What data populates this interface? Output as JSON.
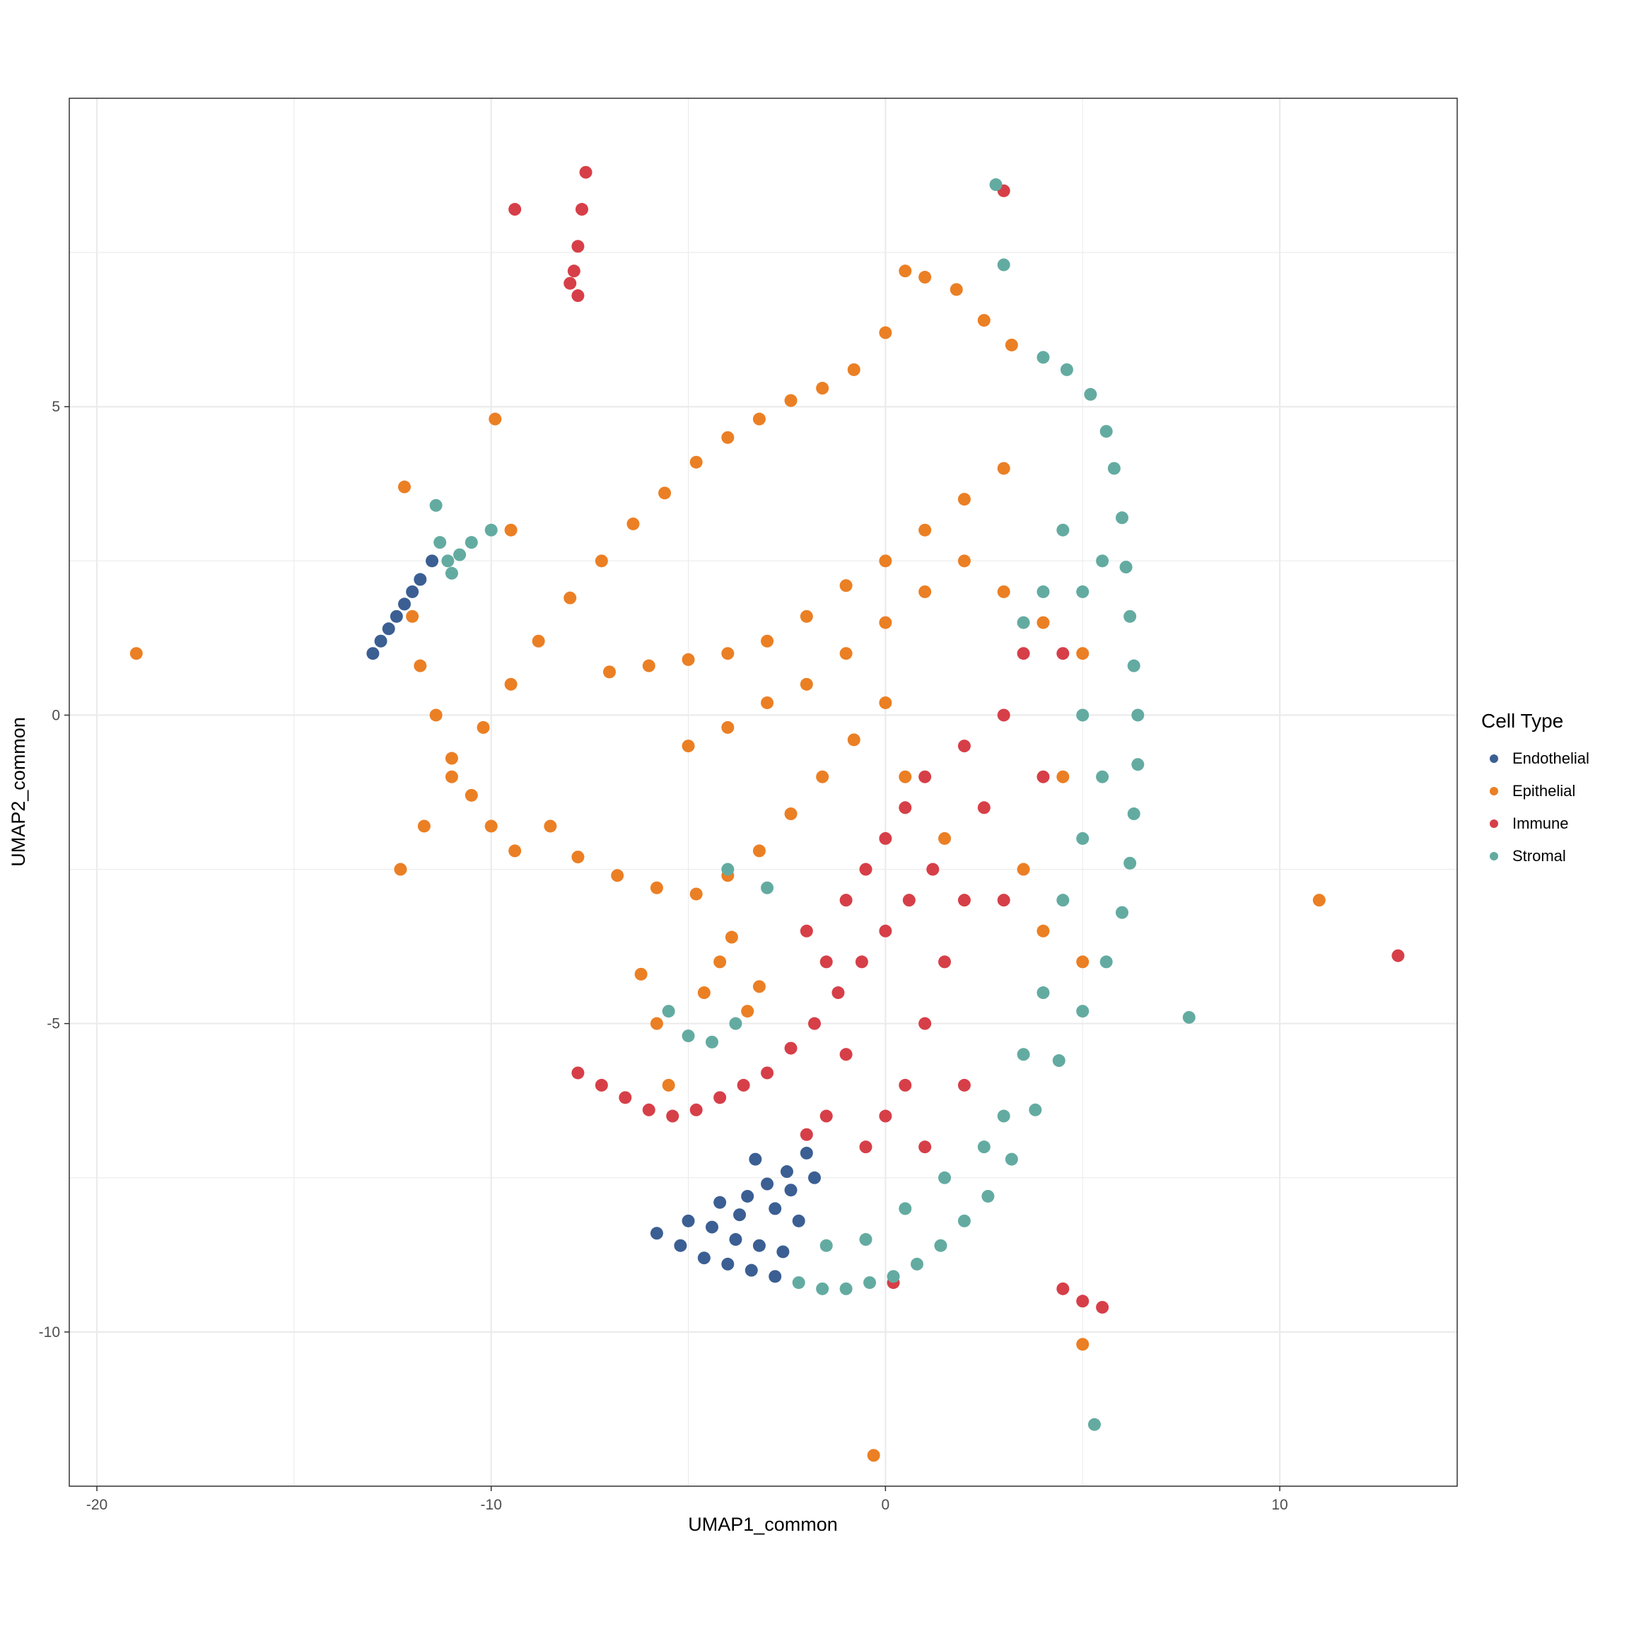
{
  "chart_data": {
    "type": "scatter",
    "title": "",
    "xlabel": "UMAP1_common",
    "ylabel": "UMAP2_common",
    "xlim": [
      -20.7,
      14.5
    ],
    "ylim": [
      -12.5,
      10
    ],
    "xticks": [
      -20,
      -10,
      0,
      10
    ],
    "xtick_labels": [
      "-20",
      "-10",
      "0",
      "10"
    ],
    "yticks": [
      -10,
      -5,
      0,
      5
    ],
    "ytick_labels": [
      "-10",
      "-5",
      "0",
      "5"
    ],
    "grid": true,
    "legend": {
      "title": "Cell Type",
      "position": "right",
      "entries": [
        "Endothelial",
        "Epithelial",
        "Immune",
        "Stromal"
      ]
    },
    "series": [
      {
        "name": "Endothelial",
        "color": "#3b5f93",
        "points": [
          [
            -13,
            1
          ],
          [
            -12.6,
            1.4
          ],
          [
            -12.2,
            1.8
          ],
          [
            -11.8,
            2.2
          ],
          [
            -11.5,
            2.5
          ],
          [
            -12.8,
            1.2
          ],
          [
            -12.4,
            1.6
          ],
          [
            -12,
            2
          ],
          [
            -5.8,
            -8.4
          ],
          [
            -5.2,
            -8.6
          ],
          [
            -4.6,
            -8.8
          ],
          [
            -4,
            -8.9
          ],
          [
            -3.4,
            -9
          ],
          [
            -2.8,
            -9.1
          ],
          [
            -5,
            -8.2
          ],
          [
            -4.4,
            -8.3
          ],
          [
            -3.8,
            -8.5
          ],
          [
            -3.2,
            -8.6
          ],
          [
            -2.6,
            -8.7
          ],
          [
            -3.5,
            -7.8
          ],
          [
            -3,
            -7.6
          ],
          [
            -2.5,
            -7.4
          ],
          [
            -2.8,
            -8
          ],
          [
            -2.2,
            -8.2
          ],
          [
            -4.2,
            -7.9
          ],
          [
            -3.7,
            -8.1
          ],
          [
            -2,
            -7.1
          ],
          [
            -2.4,
            -7.7
          ],
          [
            -1.8,
            -7.5
          ],
          [
            -3.3,
            -7.2
          ]
        ]
      },
      {
        "name": "Epithelial",
        "color": "#eb7f24",
        "points": [
          [
            -12.3,
            -2.5
          ],
          [
            -11.7,
            -1.8
          ],
          [
            -11,
            -1
          ],
          [
            -10.2,
            -0.2
          ],
          [
            -9.5,
            0.5
          ],
          [
            -8.8,
            1.2
          ],
          [
            -8,
            1.9
          ],
          [
            -7.2,
            2.5
          ],
          [
            -6.4,
            3.1
          ],
          [
            -5.6,
            3.6
          ],
          [
            -4.8,
            4.1
          ],
          [
            -4,
            4.5
          ],
          [
            -3.2,
            4.8
          ],
          [
            -2.4,
            5.1
          ],
          [
            -1.6,
            5.3
          ],
          [
            -0.8,
            5.6
          ],
          [
            0,
            6.2
          ],
          [
            0.5,
            7.2
          ],
          [
            1,
            7.1
          ],
          [
            1.8,
            6.9
          ],
          [
            2.5,
            6.4
          ],
          [
            3.2,
            6
          ],
          [
            -7,
            0.7
          ],
          [
            -6,
            0.8
          ],
          [
            -5,
            0.9
          ],
          [
            -4,
            1
          ],
          [
            -3,
            1.2
          ],
          [
            -2,
            1.6
          ],
          [
            -1,
            2.1
          ],
          [
            0,
            2.5
          ],
          [
            1,
            3
          ],
          [
            2,
            3.5
          ],
          [
            3,
            4
          ],
          [
            -5,
            -0.5
          ],
          [
            -4,
            -0.2
          ],
          [
            -3,
            0.2
          ],
          [
            -2,
            0.5
          ],
          [
            -1,
            1
          ],
          [
            0,
            1.5
          ],
          [
            1,
            2
          ],
          [
            2,
            2.5
          ],
          [
            -8.5,
            -1.8
          ],
          [
            -7.8,
            -2.3
          ],
          [
            -6.8,
            -2.6
          ],
          [
            -5.8,
            -2.8
          ],
          [
            -4.8,
            -2.9
          ],
          [
            -4,
            -2.6
          ],
          [
            -3.2,
            -2.2
          ],
          [
            -2.4,
            -1.6
          ],
          [
            -1.6,
            -1
          ],
          [
            -0.8,
            -0.4
          ],
          [
            0,
            0.2
          ],
          [
            -12,
            1.6
          ],
          [
            -11.8,
            0.8
          ],
          [
            -11.4,
            0
          ],
          [
            -11,
            -0.7
          ],
          [
            -10.5,
            -1.3
          ],
          [
            -10,
            -1.8
          ],
          [
            -9.4,
            -2.2
          ],
          [
            -4.6,
            -4.5
          ],
          [
            -4.2,
            -4
          ],
          [
            -3.9,
            -3.6
          ],
          [
            -3.5,
            -4.8
          ],
          [
            -3.2,
            -4.4
          ],
          [
            -5.5,
            -6
          ],
          [
            -5.8,
            -5
          ],
          [
            -6.2,
            -4.2
          ],
          [
            3,
            2
          ],
          [
            4,
            1.5
          ],
          [
            5,
            1
          ],
          [
            4.5,
            -1
          ],
          [
            3.5,
            -2.5
          ],
          [
            4,
            -3.5
          ],
          [
            5,
            -4
          ],
          [
            1.5,
            -2
          ],
          [
            0.5,
            -1
          ],
          [
            -12.2,
            3.7
          ],
          [
            -9.9,
            4.8
          ],
          [
            -9.5,
            3
          ],
          [
            -19,
            1
          ],
          [
            -0.3,
            -12
          ],
          [
            5,
            -10.2
          ],
          [
            11,
            -3
          ]
        ]
      },
      {
        "name": "Immune",
        "color": "#d63f48",
        "points": [
          [
            -7.6,
            8.8
          ],
          [
            -7.7,
            8.2
          ],
          [
            -7.8,
            7.6
          ],
          [
            -7.9,
            7.2
          ],
          [
            -8,
            7
          ],
          [
            -7.8,
            6.8
          ],
          [
            -9.4,
            8.2
          ],
          [
            -7.8,
            -5.8
          ],
          [
            -7.2,
            -6
          ],
          [
            -6.6,
            -6.2
          ],
          [
            -6,
            -6.4
          ],
          [
            -5.4,
            -6.5
          ],
          [
            -4.8,
            -6.4
          ],
          [
            -4.2,
            -6.2
          ],
          [
            -3.6,
            -6
          ],
          [
            -3,
            -5.8
          ],
          [
            -2.4,
            -5.4
          ],
          [
            -1.8,
            -5
          ],
          [
            -1.2,
            -4.5
          ],
          [
            -0.6,
            -4
          ],
          [
            0,
            -3.5
          ],
          [
            0.6,
            -3
          ],
          [
            1.2,
            -2.5
          ],
          [
            -2,
            -3.5
          ],
          [
            -1.5,
            -4
          ],
          [
            -1,
            -3
          ],
          [
            -0.5,
            -2.5
          ],
          [
            0,
            -2
          ],
          [
            0.5,
            -1.5
          ],
          [
            1,
            -1
          ],
          [
            2,
            -0.5
          ],
          [
            2.5,
            -1.5
          ],
          [
            3,
            0
          ],
          [
            3.5,
            1
          ],
          [
            2,
            -3
          ],
          [
            1.5,
            -4
          ],
          [
            1,
            -5
          ],
          [
            0.5,
            -6
          ],
          [
            0,
            -6.5
          ],
          [
            -0.5,
            -7
          ],
          [
            -1,
            -5.5
          ],
          [
            -1.5,
            -6.5
          ],
          [
            -2,
            -6.8
          ],
          [
            1,
            -7
          ],
          [
            2,
            -6
          ],
          [
            3,
            -3
          ],
          [
            4,
            -1
          ],
          [
            4.5,
            1
          ],
          [
            0.2,
            -9.2
          ],
          [
            4.5,
            -9.3
          ],
          [
            5,
            -9.5
          ],
          [
            5.5,
            -9.6
          ],
          [
            13,
            -3.9
          ],
          [
            3,
            8.5
          ]
        ]
      },
      {
        "name": "Stromal",
        "color": "#63aba1",
        "points": [
          [
            -11.3,
            2.8
          ],
          [
            -11.1,
            2.5
          ],
          [
            -11,
            2.3
          ],
          [
            -10.8,
            2.6
          ],
          [
            -10.5,
            2.8
          ],
          [
            -10,
            3
          ],
          [
            -11.4,
            3.4
          ],
          [
            4,
            5.8
          ],
          [
            4.6,
            5.6
          ],
          [
            5.2,
            5.2
          ],
          [
            5.6,
            4.6
          ],
          [
            5.8,
            4
          ],
          [
            6,
            3.2
          ],
          [
            6.1,
            2.4
          ],
          [
            6.2,
            1.6
          ],
          [
            6.3,
            0.8
          ],
          [
            6.4,
            0
          ],
          [
            6.4,
            -0.8
          ],
          [
            6.3,
            -1.6
          ],
          [
            6.2,
            -2.4
          ],
          [
            6,
            -3.2
          ],
          [
            5.6,
            -4
          ],
          [
            5,
            -4.8
          ],
          [
            4.4,
            -5.6
          ],
          [
            3.8,
            -6.4
          ],
          [
            3.2,
            -7.2
          ],
          [
            2.6,
            -7.8
          ],
          [
            2,
            -8.2
          ],
          [
            1.4,
            -8.6
          ],
          [
            0.8,
            -8.9
          ],
          [
            0.2,
            -9.1
          ],
          [
            -0.4,
            -9.2
          ],
          [
            -1,
            -9.3
          ],
          [
            -1.6,
            -9.3
          ],
          [
            -2.2,
            -9.2
          ],
          [
            5,
            2
          ],
          [
            5,
            0
          ],
          [
            5,
            -2
          ],
          [
            4.5,
            -3
          ],
          [
            4,
            -4.5
          ],
          [
            3.5,
            -5.5
          ],
          [
            3,
            -6.5
          ],
          [
            2.5,
            -7
          ],
          [
            1.5,
            -7.5
          ],
          [
            0.5,
            -8
          ],
          [
            -0.5,
            -8.5
          ],
          [
            -1.5,
            -8.6
          ],
          [
            4.5,
            3
          ],
          [
            4,
            2
          ],
          [
            3.5,
            1.5
          ],
          [
            5.5,
            2.5
          ],
          [
            5.5,
            -1
          ],
          [
            -5.5,
            -4.8
          ],
          [
            -5,
            -5.2
          ],
          [
            -4.4,
            -5.3
          ],
          [
            -3.8,
            -5
          ],
          [
            -4,
            -2.5
          ],
          [
            -3,
            -2.8
          ],
          [
            2.8,
            8.6
          ],
          [
            3,
            7.3
          ],
          [
            7.7,
            -4.9
          ],
          [
            5.3,
            -11.5
          ]
        ]
      }
    ]
  }
}
